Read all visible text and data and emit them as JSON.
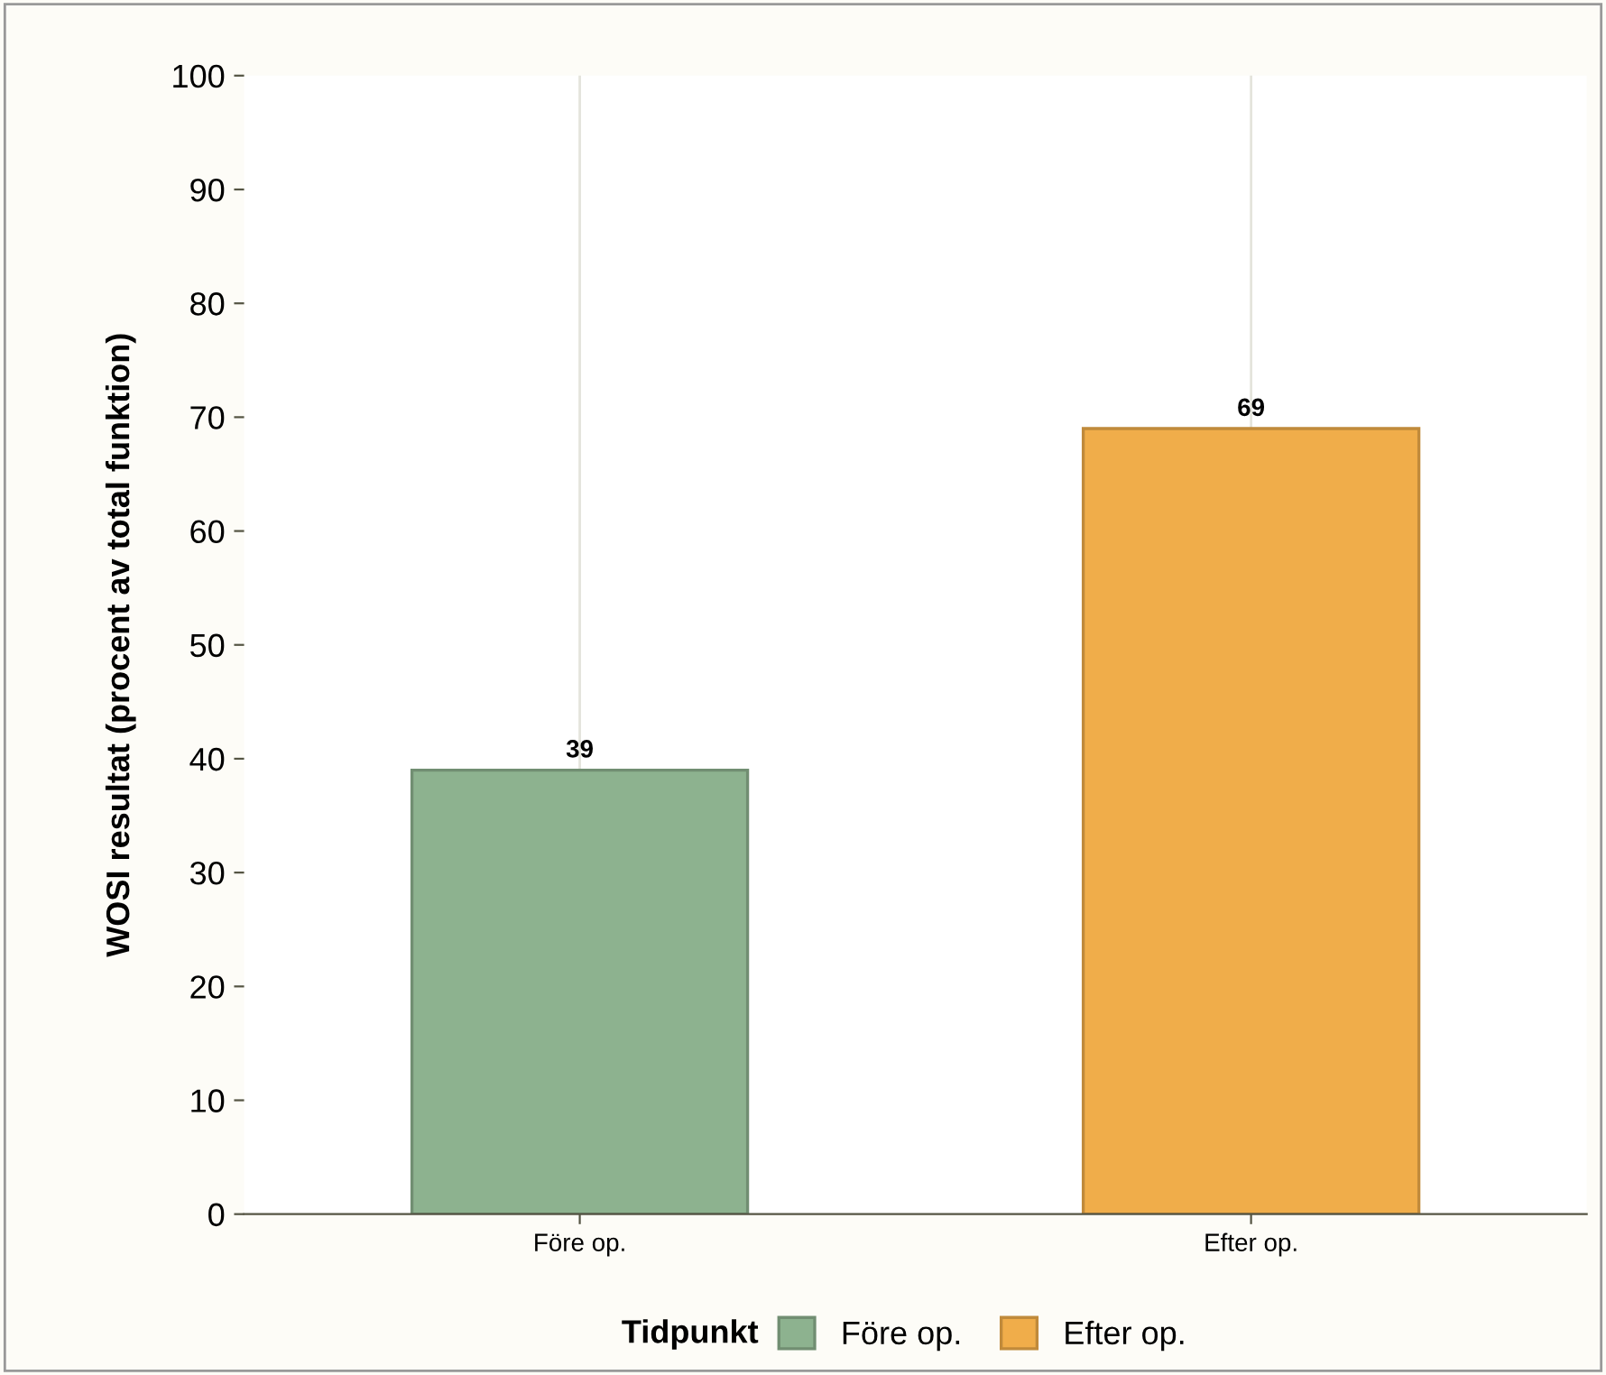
{
  "chart_data": {
    "type": "bar",
    "ylabel": "WOSI resultat (procent av total funktion)",
    "legend_title": "Tidpunkt",
    "categories": [
      "Före op.",
      "Efter op."
    ],
    "series": [
      {
        "name": "Före op.",
        "color": "#8db28f",
        "values": [
          39,
          null
        ]
      },
      {
        "name": "Efter op.",
        "color": "#f0ad4a",
        "values": [
          null,
          69
        ]
      }
    ],
    "ylim": [
      0,
      100
    ],
    "yticks": [
      0,
      10,
      20,
      30,
      40,
      50,
      60,
      70,
      80,
      90,
      100
    ],
    "grid": "x",
    "legend": "bottom",
    "data_labels": true
  }
}
